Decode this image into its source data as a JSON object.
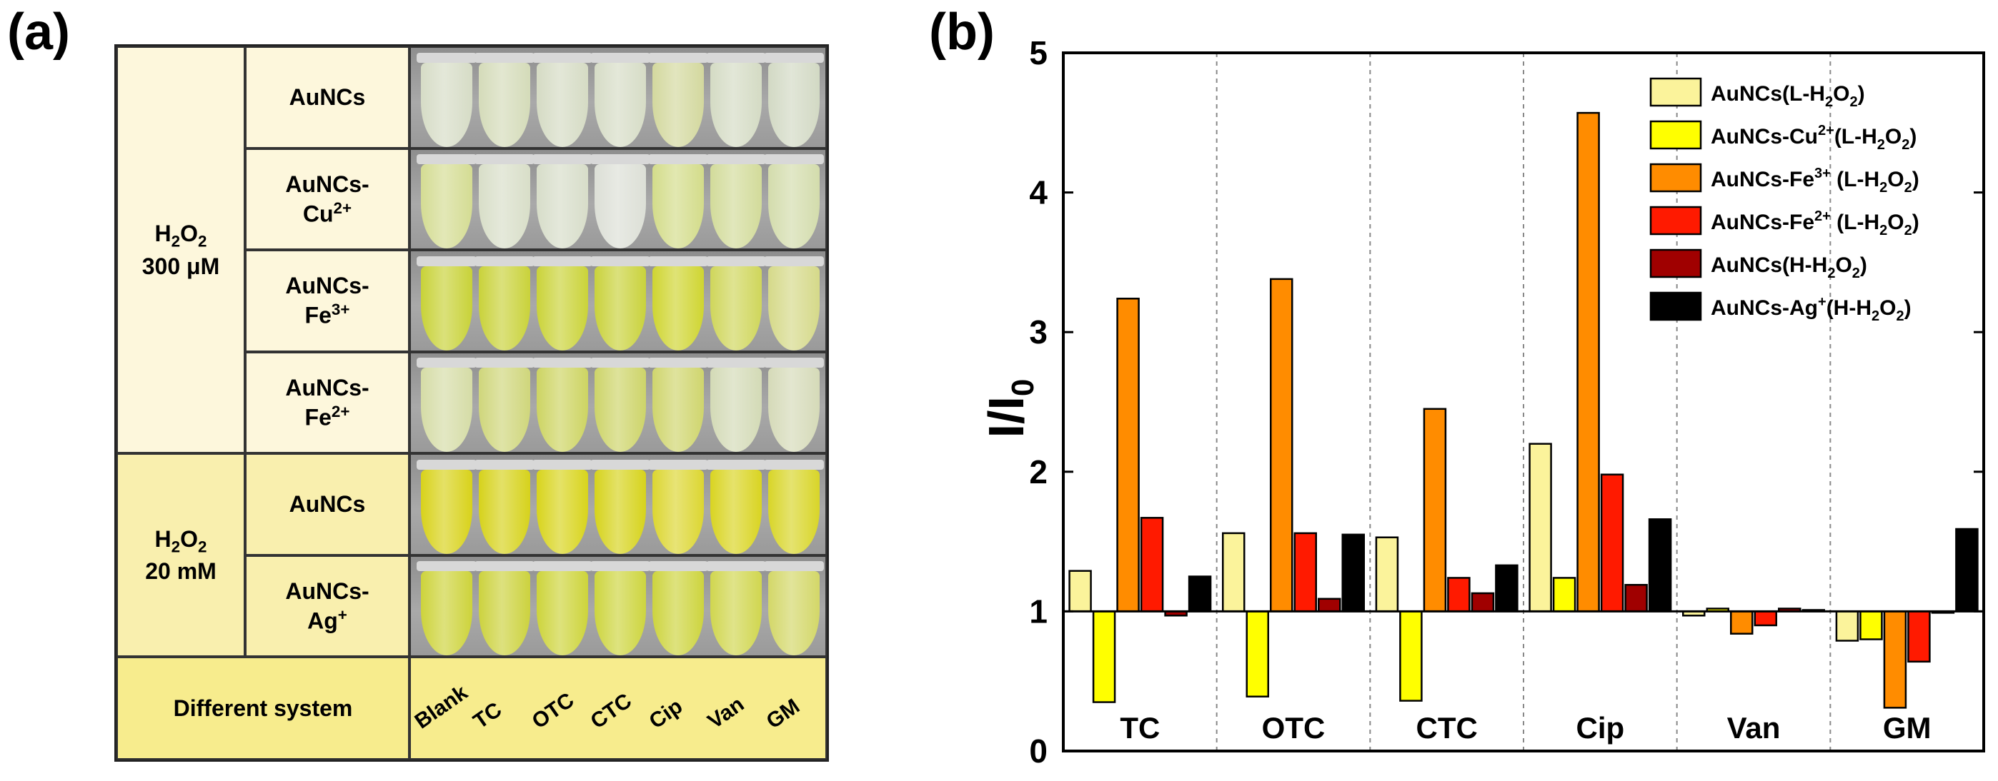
{
  "panel_labels": {
    "a": "(a)",
    "b": "(b)"
  },
  "table": {
    "group1": {
      "l1": "H",
      "sub": "2",
      "l2": "O",
      "sub2": "2",
      "conc": "300 μM"
    },
    "group2": {
      "l1": "H",
      "sub": "2",
      "l2": "O",
      "sub2": "2",
      "conc": "20 mM"
    },
    "rows": [
      {
        "line1": "AuNCs",
        "line2": "",
        "ion": "",
        "charge": ""
      },
      {
        "line1": "AuNCs-",
        "line2": "",
        "ion": "Cu",
        "charge": "2+"
      },
      {
        "line1": "AuNCs-",
        "line2": "",
        "ion": "Fe",
        "charge": "3+"
      },
      {
        "line1": "AuNCs-",
        "line2": "",
        "ion": "Fe",
        "charge": "2+"
      },
      {
        "line1": "AuNCs",
        "line2": "",
        "ion": "",
        "charge": ""
      },
      {
        "line1": "AuNCs-",
        "line2": "",
        "ion": "Ag",
        "charge": "+"
      }
    ],
    "footer_label": "Different system",
    "columns": [
      "Blank",
      "TC",
      "OTC",
      "CTC",
      "Cip",
      "Van",
      "GM"
    ],
    "tube_colors": [
      [
        "#d6dcc6",
        "#d4dbb9",
        "#d5dbc4",
        "#d6dcc6",
        "#d3d89e",
        "#d4dbc4",
        "#d2d9c4"
      ],
      [
        "#d4dc93",
        "#d8dec8",
        "#d7ddc9",
        "#dcdfd6",
        "#d3dc8a",
        "#d2db9a",
        "#d3dcac"
      ],
      [
        "#c8d238",
        "#c9d23a",
        "#cad339",
        "#c9d23c",
        "#cfd531",
        "#cfd65b",
        "#d5d989"
      ],
      [
        "#d5dca6",
        "#cfd67b",
        "#cdd462",
        "#cdd469",
        "#cfd56d",
        "#d3dab6",
        "#d5dab8"
      ],
      [
        "#d8d21a",
        "#d6d21b",
        "#d8d41c",
        "#d6d31c",
        "#dcd631",
        "#d9d421",
        "#d8d528"
      ],
      [
        "#cdd33b",
        "#ccd23e",
        "#cdd43b",
        "#cdd53f",
        "#cdd43e",
        "#d0d64f",
        "#d3d768"
      ]
    ]
  },
  "chart_data": {
    "type": "bar",
    "categories": [
      "TC",
      "OTC",
      "CTC",
      "Cip",
      "Van",
      "GM"
    ],
    "ylabel": "I/I",
    "ylabel_sub": "0",
    "ylim": [
      0,
      5
    ],
    "yticks": [
      0,
      1,
      2,
      3,
      4,
      5
    ],
    "baseline": 1,
    "legend_position": "top-right",
    "series": [
      {
        "name": "AuNCs(L-H2O2)",
        "label_pre": "AuNCs(L-H",
        "label_sup": "",
        "label_mid": "",
        "label_sub": "2",
        "label_post": "O",
        "label_sub2": "2",
        "label_end": ")",
        "color": "#fbf39b",
        "values": [
          1.29,
          1.56,
          1.53,
          2.2,
          0.97,
          0.79
        ]
      },
      {
        "name": "AuNCs-Cu2+(L-H2O2)",
        "label_pre": "AuNCs-Cu",
        "label_sup": "2+",
        "label_mid": "(L-H",
        "label_sub": "2",
        "label_post": "O",
        "label_sub2": "2",
        "label_end": ")",
        "color": "#ffff00",
        "values": [
          0.35,
          0.39,
          0.36,
          1.24,
          1.02,
          0.8
        ]
      },
      {
        "name": "AuNCs-Fe3+(L-H2O2)",
        "label_pre": "AuNCs-Fe",
        "label_sup": "3+",
        "label_mid": " (L-H",
        "label_sub": "2",
        "label_post": "O",
        "label_sub2": "2",
        "label_end": ")",
        "color": "#ff8c00",
        "values": [
          3.24,
          3.38,
          2.45,
          4.57,
          0.84,
          0.31
        ]
      },
      {
        "name": "AuNCs-Fe2+(L-H2O2)",
        "label_pre": "AuNCs-Fe",
        "label_sup": "2+",
        "label_mid": " (L-H",
        "label_sub": "2",
        "label_post": "O",
        "label_sub2": "2",
        "label_end": ")",
        "color": "#ff1a00",
        "values": [
          1.67,
          1.56,
          1.24,
          1.98,
          0.9,
          0.64
        ]
      },
      {
        "name": "AuNCs(H-H2O2)",
        "label_pre": "AuNCs(H-H",
        "label_sup": "",
        "label_mid": "",
        "label_sub": "2",
        "label_post": "O",
        "label_sub2": "2",
        "label_end": ")",
        "color": "#a00000",
        "values": [
          0.97,
          1.09,
          1.13,
          1.19,
          1.02,
          1.0
        ]
      },
      {
        "name": "AuNCs-Ag+(H-H2O2)",
        "label_pre": "AuNCs-Ag",
        "label_sup": "+",
        "label_mid": "(H-H",
        "label_sub": "2",
        "label_post": "O",
        "label_sub2": "2",
        "label_end": ")",
        "color": "#000000",
        "values": [
          1.25,
          1.55,
          1.33,
          1.66,
          1.01,
          1.59
        ]
      }
    ]
  }
}
